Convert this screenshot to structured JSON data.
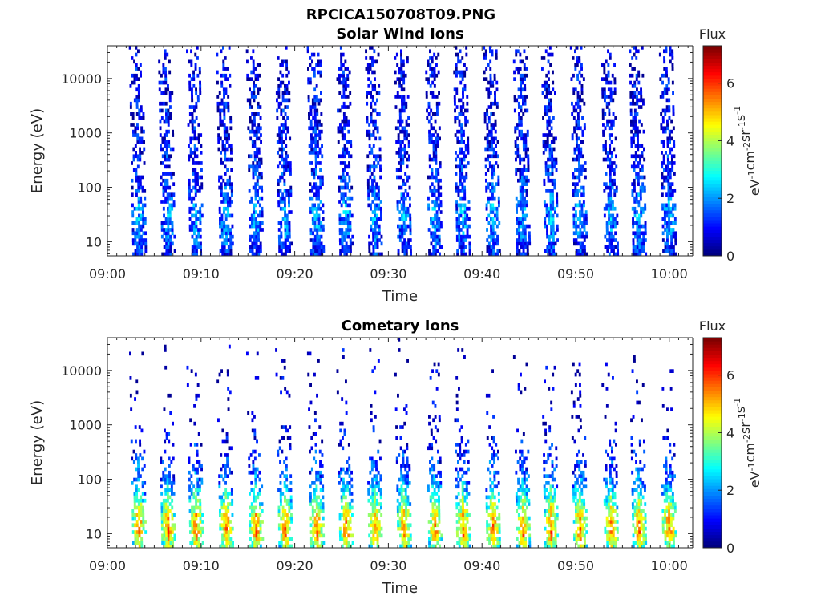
{
  "figure_title": "RPCICA150708T09.PNG",
  "colorbar": {
    "title": "Flux",
    "label": "eV-1cm-2sr-1s-1",
    "label_parts": [
      "eV",
      "-1",
      "cm",
      "-2",
      "sr",
      "-1",
      "s",
      "-1"
    ],
    "range": [
      0,
      7.3
    ],
    "ticks": [
      "0",
      "2",
      "4",
      "6"
    ],
    "tick_values": [
      0,
      2,
      4,
      6
    ],
    "colormap": "jet"
  },
  "chart_data": [
    {
      "type": "heatmap",
      "title": "Solar Wind Ions",
      "xlabel": "Time",
      "ylabel": "Energy (eV)",
      "xlim_minutes_after_09_00": [
        0,
        62.5
      ],
      "x_ticks": [
        "09:00",
        "09:10",
        "09:20",
        "09:30",
        "09:40",
        "09:50",
        "10:00"
      ],
      "x_tick_values_minutes": [
        0,
        10,
        20,
        30,
        40,
        50,
        60
      ],
      "yscale": "log",
      "ylim": [
        5.5,
        40000
      ],
      "y_ticks": [
        "10",
        "100",
        "1000",
        "10000"
      ],
      "y_tick_values": [
        10,
        100,
        1000,
        10000
      ],
      "grid": false,
      "sweep_minutes": [
        3.4,
        6.5,
        9.5,
        12.7,
        15.9,
        19.0,
        22.4,
        25.5,
        28.6,
        31.7,
        35.0,
        38.0,
        41.2,
        44.4,
        47.4,
        50.5,
        53.8,
        56.8,
        60.0
      ],
      "flux_profile": {
        "energy": [
          6,
          10,
          20,
          40,
          100,
          1000,
          10000,
          40000
        ],
        "typical_flux": [
          1.2,
          1.6,
          2.0,
          2.2,
          1.4,
          1.0,
          0.9,
          0.7
        ],
        "fill_fraction": [
          0.95,
          0.9,
          0.85,
          0.8,
          0.7,
          0.65,
          0.55,
          0.25
        ]
      }
    },
    {
      "type": "heatmap",
      "title": "Cometary Ions",
      "xlabel": "Time",
      "ylabel": "Energy (eV)",
      "xlim_minutes_after_09_00": [
        0,
        62.5
      ],
      "x_ticks": [
        "09:00",
        "09:10",
        "09:20",
        "09:30",
        "09:40",
        "09:50",
        "10:00"
      ],
      "x_tick_values_minutes": [
        0,
        10,
        20,
        30,
        40,
        50,
        60
      ],
      "yscale": "log",
      "ylim": [
        5.5,
        40000
      ],
      "y_ticks": [
        "10",
        "100",
        "1000",
        "10000"
      ],
      "y_tick_values": [
        10,
        100,
        1000,
        10000
      ],
      "grid": false,
      "sweep_minutes": [
        3.4,
        6.5,
        9.5,
        12.7,
        15.9,
        19.0,
        22.4,
        25.5,
        28.6,
        31.7,
        35.0,
        38.0,
        41.2,
        44.4,
        47.4,
        50.5,
        53.8,
        56.8,
        60.0
      ],
      "flux_profile": {
        "energy": [
          6,
          10,
          20,
          40,
          100,
          1000,
          10000,
          40000
        ],
        "typical_flux": [
          4.2,
          5.6,
          5.2,
          3.8,
          2.0,
          0.7,
          0.6,
          0.5
        ],
        "fill_fraction": [
          0.95,
          0.95,
          0.9,
          0.85,
          0.6,
          0.12,
          0.08,
          0.02
        ]
      }
    }
  ]
}
